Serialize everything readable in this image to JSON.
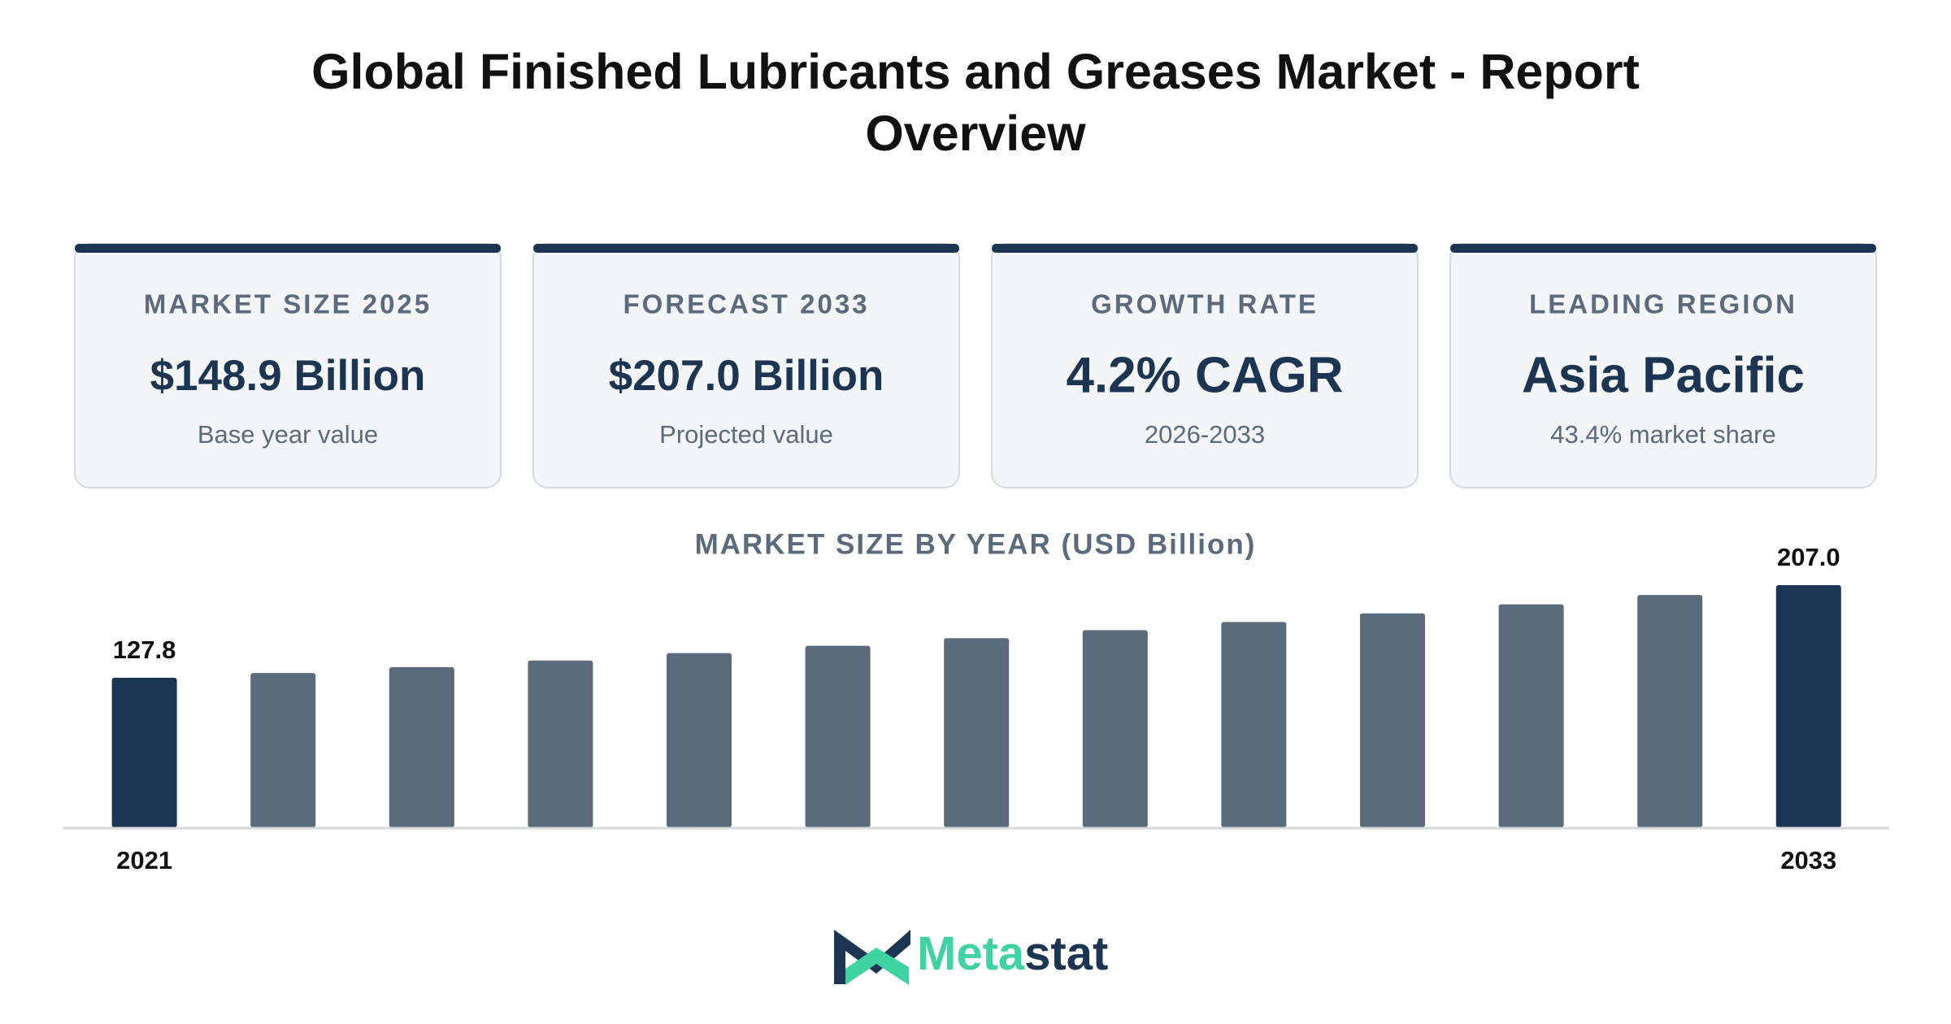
{
  "header": {
    "title": "Global Finished Lubricants and Greases Market - Report Overview"
  },
  "cards": [
    {
      "label": "MARKET SIZE 2025",
      "value": "$148.9 Billion",
      "note": "Base year value"
    },
    {
      "label": "FORECAST 2033",
      "value": "$207.0 Billion",
      "note": "Projected value"
    },
    {
      "label": "GROWTH RATE",
      "value": "4.2% CAGR",
      "note": "2026-2033"
    },
    {
      "label": "LEADING REGION",
      "value": "Asia Pacific",
      "note": "43.4% market share"
    }
  ],
  "chart_data": {
    "type": "bar",
    "title": "MARKET SIZE BY YEAR (USD Billion)",
    "categories": [
      "2021",
      null,
      null,
      null,
      null,
      null,
      null,
      null,
      null,
      null,
      null,
      null,
      "2033"
    ],
    "values": [
      127.8,
      131.9,
      136.9,
      142.6,
      148.9,
      155.2,
      161.7,
      168.5,
      175.5,
      182.9,
      190.6,
      198.6,
      207.0
    ],
    "value_labels": [
      "127.8",
      null,
      null,
      null,
      null,
      null,
      null,
      null,
      null,
      null,
      null,
      null,
      "207.0"
    ],
    "colors": [
      "#1b3552",
      "#5b6b7b",
      "#5b6b7b",
      "#5b6b7b",
      "#5b6b7b",
      "#5b6b7b",
      "#5b6b7b",
      "#5b6b7b",
      "#5b6b7b",
      "#5b6b7b",
      "#5b6b7b",
      "#5b6b7b",
      "#1b3552"
    ]
  },
  "logo": {
    "part1": "Meta",
    "part2": "stat"
  }
}
